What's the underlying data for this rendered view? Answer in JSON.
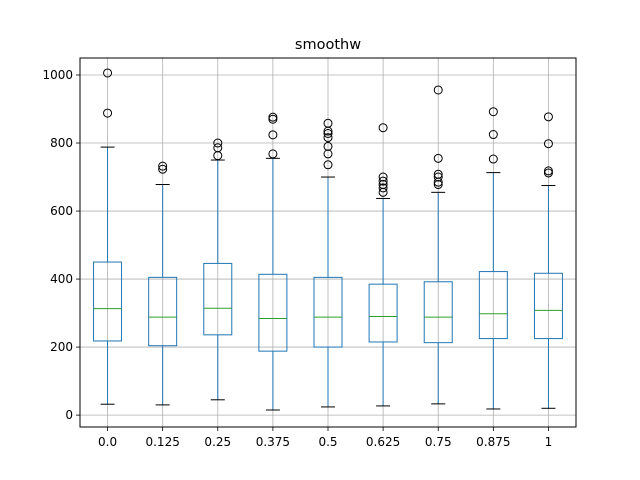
{
  "chart_data": {
    "type": "box",
    "title": "smoothw",
    "xlabel": "",
    "ylabel": "",
    "ylim": [
      -35,
      1050
    ],
    "yticks": [
      0,
      200,
      400,
      600,
      800,
      1000
    ],
    "grid": true,
    "categories": [
      "0.0",
      "0.125",
      "0.25",
      "0.375",
      "0.5",
      "0.625",
      "0.75",
      "0.875",
      "1"
    ],
    "boxes": [
      {
        "whislo": 32,
        "q1": 218,
        "med": 313,
        "q3": 450,
        "whishi": 788,
        "fliers": [
          888,
          1006
        ]
      },
      {
        "whislo": 30,
        "q1": 204,
        "med": 288,
        "q3": 405,
        "whishi": 678,
        "fliers": [
          723,
          732
        ]
      },
      {
        "whislo": 45,
        "q1": 236,
        "med": 314,
        "q3": 446,
        "whishi": 750,
        "fliers": [
          763,
          786,
          800
        ]
      },
      {
        "whislo": 15,
        "q1": 188,
        "med": 284,
        "q3": 414,
        "whishi": 755,
        "fliers": [
          768,
          824,
          870,
          876
        ]
      },
      {
        "whislo": 24,
        "q1": 200,
        "med": 288,
        "q3": 405,
        "whishi": 700,
        "fliers": [
          736,
          768,
          790,
          816,
          828,
          835,
          858
        ]
      },
      {
        "whislo": 27,
        "q1": 215,
        "med": 290,
        "q3": 385,
        "whishi": 637,
        "fliers": [
          655,
          668,
          678,
          688,
          700,
          845
        ]
      },
      {
        "whislo": 33,
        "q1": 213,
        "med": 288,
        "q3": 392,
        "whishi": 655,
        "fliers": [
          678,
          685,
          700,
          708,
          755,
          956
        ]
      },
      {
        "whislo": 18,
        "q1": 225,
        "med": 298,
        "q3": 422,
        "whishi": 713,
        "fliers": [
          753,
          825,
          892
        ]
      },
      {
        "whislo": 20,
        "q1": 225,
        "med": 308,
        "q3": 417,
        "whishi": 675,
        "fliers": [
          712,
          718,
          798,
          877
        ]
      }
    ],
    "colors": {
      "box": "#1f77b4",
      "median": "#2ca02c",
      "whisker_cap": "#000000",
      "flier": "#000000",
      "grid": "#b0b0b0",
      "axes": "#000000"
    }
  }
}
